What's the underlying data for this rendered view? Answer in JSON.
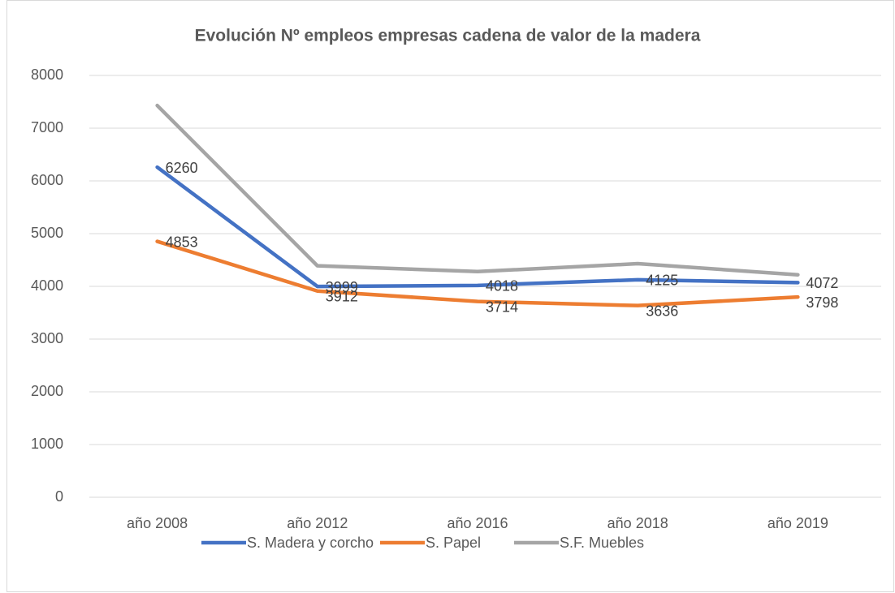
{
  "chart_data": {
    "type": "line",
    "title": "Evolución Nº empleos empresas cadena de valor de la madera",
    "categories": [
      "año 2008",
      "año 2012",
      "año 2016",
      "año 2018",
      "año 2019"
    ],
    "series": [
      {
        "name": "S. Madera y corcho",
        "color": "#4472c4",
        "values": [
          6260,
          3999,
          4018,
          4125,
          4072
        ],
        "data_labels": true
      },
      {
        "name": "S. Papel",
        "color": "#ed7d31",
        "values": [
          4853,
          3912,
          3714,
          3636,
          3798
        ],
        "data_labels": true
      },
      {
        "name": "S.F. Muebles",
        "color": "#a5a5a5",
        "values": [
          7430,
          4390,
          4280,
          4430,
          4220
        ],
        "data_labels": false
      }
    ],
    "ylim": [
      0,
      8000
    ],
    "yticks": [
      0,
      1000,
      2000,
      3000,
      4000,
      5000,
      6000,
      7000,
      8000
    ],
    "grid": true,
    "legend": "bottom"
  }
}
